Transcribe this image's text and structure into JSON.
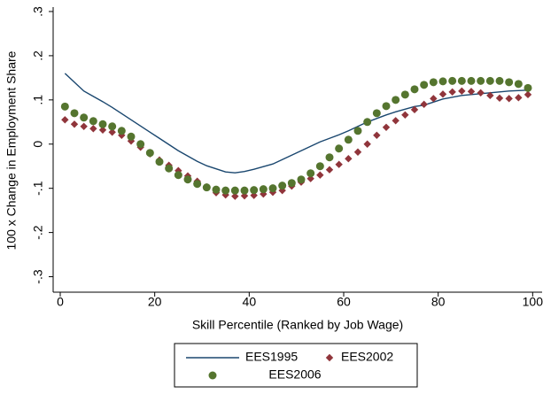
{
  "chart_data": {
    "type": "line",
    "xlabel": "Skill Percentile (Ranked by Job Wage)",
    "ylabel": "100 x Change in Employment Share",
    "x": [
      1,
      3,
      5,
      7,
      9,
      11,
      13,
      15,
      17,
      19,
      21,
      23,
      25,
      27,
      29,
      31,
      33,
      35,
      37,
      39,
      41,
      43,
      45,
      47,
      49,
      51,
      53,
      55,
      57,
      59,
      61,
      63,
      65,
      67,
      69,
      71,
      73,
      75,
      77,
      79,
      81,
      83,
      85,
      87,
      89,
      91,
      93,
      95,
      97,
      99
    ],
    "series": [
      {
        "name": "EES1995",
        "color": "#1a476f",
        "style": "line",
        "values": [
          0.16,
          0.14,
          0.12,
          0.108,
          0.096,
          0.083,
          0.069,
          0.055,
          0.041,
          0.027,
          0.013,
          -0.001,
          -0.015,
          -0.027,
          -0.039,
          -0.049,
          -0.056,
          -0.063,
          -0.065,
          -0.062,
          -0.057,
          -0.051,
          -0.045,
          -0.035,
          -0.025,
          -0.015,
          -0.005,
          0.005,
          0.013,
          0.021,
          0.03,
          0.04,
          0.05,
          0.058,
          0.066,
          0.073,
          0.079,
          0.085,
          0.088,
          0.095,
          0.102,
          0.106,
          0.11,
          0.112,
          0.114,
          0.116,
          0.118,
          0.12,
          0.121,
          0.122
        ]
      },
      {
        "name": "EES2002",
        "color": "#90353b",
        "style": "diamond",
        "values": [
          0.055,
          0.045,
          0.04,
          0.035,
          0.032,
          0.027,
          0.02,
          0.007,
          -0.007,
          -0.022,
          -0.036,
          -0.048,
          -0.06,
          -0.072,
          -0.084,
          -0.097,
          -0.11,
          -0.115,
          -0.118,
          -0.117,
          -0.116,
          -0.113,
          -0.109,
          -0.105,
          -0.095,
          -0.086,
          -0.078,
          -0.07,
          -0.058,
          -0.046,
          -0.033,
          -0.018,
          0.0,
          0.02,
          0.038,
          0.053,
          0.066,
          0.078,
          0.09,
          0.103,
          0.113,
          0.118,
          0.12,
          0.119,
          0.116,
          0.11,
          0.104,
          0.103,
          0.105,
          0.112
        ]
      },
      {
        "name": "EES2006",
        "color": "#55752f",
        "style": "circle",
        "values": [
          0.085,
          0.07,
          0.06,
          0.052,
          0.045,
          0.04,
          0.03,
          0.017,
          0.0,
          -0.02,
          -0.04,
          -0.055,
          -0.07,
          -0.08,
          -0.09,
          -0.098,
          -0.103,
          -0.105,
          -0.105,
          -0.105,
          -0.104,
          -0.102,
          -0.1,
          -0.094,
          -0.088,
          -0.08,
          -0.066,
          -0.05,
          -0.03,
          -0.01,
          0.01,
          0.03,
          0.05,
          0.07,
          0.086,
          0.1,
          0.112,
          0.124,
          0.134,
          0.14,
          0.142,
          0.143,
          0.143,
          0.143,
          0.143,
          0.143,
          0.143,
          0.14,
          0.136,
          0.127
        ]
      }
    ],
    "xlim": [
      -1.5,
      102
    ],
    "xticks": [
      0,
      20,
      40,
      60,
      80,
      100
    ],
    "ylim": [
      -0.335,
      0.31
    ],
    "yticks": [
      {
        "value": -0.3,
        "label": "-.3"
      },
      {
        "value": -0.2,
        "label": "-.2"
      },
      {
        "value": -0.1,
        "label": "-.1"
      },
      0,
      {
        "value": 0.1,
        "label": ".1"
      },
      {
        "value": 0.2,
        "label": ".2"
      },
      {
        "value": 0.3,
        "label": ".3"
      }
    ],
    "grid": false,
    "legend": "bottom"
  }
}
